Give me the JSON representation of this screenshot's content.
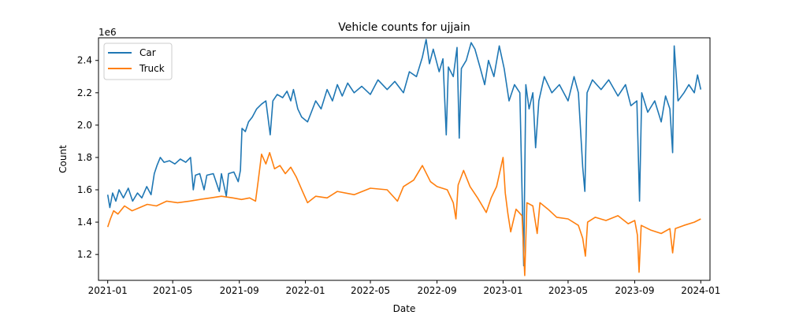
{
  "chart_data": {
    "type": "line",
    "title": "Vehicle counts for ujjain",
    "xlabel": "Date",
    "ylabel": "Count",
    "y_offset_label": "1e6",
    "ylim": [
      1.04,
      2.54
    ],
    "y_ticks": [
      1.2,
      1.4,
      1.6,
      1.8,
      2.0,
      2.2,
      2.4
    ],
    "y_tick_labels": [
      "1.2",
      "1.4",
      "1.6",
      "1.8",
      "2.0",
      "2.2",
      "2.4"
    ],
    "x_range": [
      "2020-12-15",
      "2024-01-18"
    ],
    "x_ticks": [
      "2021-01-01",
      "2021-05-01",
      "2021-09-01",
      "2022-01-01",
      "2022-05-01",
      "2022-09-01",
      "2023-01-01",
      "2023-05-01",
      "2023-09-01",
      "2024-01-01"
    ],
    "x_tick_labels": [
      "2021-01",
      "2021-05",
      "2021-09",
      "2022-01",
      "2022-05",
      "2022-09",
      "2023-01",
      "2023-05",
      "2023-09",
      "2024-01"
    ],
    "legend": {
      "placement": "upper-left",
      "entries": [
        "Car",
        "Truck"
      ]
    },
    "grid": false,
    "series": [
      {
        "name": "Car",
        "color": "#1f77b4",
        "points": [
          [
            "2021-01-01",
            1.57
          ],
          [
            "2021-01-05",
            1.49
          ],
          [
            "2021-01-10",
            1.58
          ],
          [
            "2021-01-16",
            1.53
          ],
          [
            "2021-01-22",
            1.6
          ],
          [
            "2021-01-30",
            1.55
          ],
          [
            "2021-02-08",
            1.61
          ],
          [
            "2021-02-16",
            1.53
          ],
          [
            "2021-02-25",
            1.58
          ],
          [
            "2021-03-05",
            1.55
          ],
          [
            "2021-03-14",
            1.62
          ],
          [
            "2021-03-22",
            1.57
          ],
          [
            "2021-03-28",
            1.7
          ],
          [
            "2021-04-02",
            1.75
          ],
          [
            "2021-04-08",
            1.8
          ],
          [
            "2021-04-15",
            1.77
          ],
          [
            "2021-04-25",
            1.78
          ],
          [
            "2021-05-05",
            1.76
          ],
          [
            "2021-05-15",
            1.79
          ],
          [
            "2021-05-25",
            1.77
          ],
          [
            "2021-06-03",
            1.8
          ],
          [
            "2021-06-08",
            1.6
          ],
          [
            "2021-06-12",
            1.69
          ],
          [
            "2021-06-20",
            1.7
          ],
          [
            "2021-06-28",
            1.6
          ],
          [
            "2021-07-03",
            1.69
          ],
          [
            "2021-07-15",
            1.7
          ],
          [
            "2021-07-26",
            1.59
          ],
          [
            "2021-07-30",
            1.7
          ],
          [
            "2021-08-08",
            1.56
          ],
          [
            "2021-08-12",
            1.7
          ],
          [
            "2021-08-22",
            1.71
          ],
          [
            "2021-08-30",
            1.65
          ],
          [
            "2021-09-03",
            1.72
          ],
          [
            "2021-09-06",
            1.98
          ],
          [
            "2021-09-12",
            1.96
          ],
          [
            "2021-09-18",
            2.02
          ],
          [
            "2021-09-25",
            2.05
          ],
          [
            "2021-10-03",
            2.1
          ],
          [
            "2021-10-12",
            2.13
          ],
          [
            "2021-10-20",
            2.15
          ],
          [
            "2021-10-28",
            1.94
          ],
          [
            "2021-11-02",
            2.15
          ],
          [
            "2021-11-10",
            2.19
          ],
          [
            "2021-11-20",
            2.17
          ],
          [
            "2021-11-28",
            2.21
          ],
          [
            "2021-12-05",
            2.15
          ],
          [
            "2021-12-10",
            2.22
          ],
          [
            "2021-12-18",
            2.1
          ],
          [
            "2021-12-25",
            2.05
          ],
          [
            "2022-01-05",
            2.02
          ],
          [
            "2022-01-12",
            2.08
          ],
          [
            "2022-01-20",
            2.15
          ],
          [
            "2022-01-30",
            2.1
          ],
          [
            "2022-02-10",
            2.22
          ],
          [
            "2022-02-20",
            2.15
          ],
          [
            "2022-03-01",
            2.25
          ],
          [
            "2022-03-10",
            2.18
          ],
          [
            "2022-03-20",
            2.26
          ],
          [
            "2022-04-01",
            2.2
          ],
          [
            "2022-04-15",
            2.24
          ],
          [
            "2022-05-01",
            2.19
          ],
          [
            "2022-05-15",
            2.28
          ],
          [
            "2022-06-01",
            2.22
          ],
          [
            "2022-06-15",
            2.27
          ],
          [
            "2022-07-01",
            2.2
          ],
          [
            "2022-07-12",
            2.33
          ],
          [
            "2022-07-25",
            2.3
          ],
          [
            "2022-08-05",
            2.42
          ],
          [
            "2022-08-12",
            2.53
          ],
          [
            "2022-08-18",
            2.38
          ],
          [
            "2022-08-25",
            2.47
          ],
          [
            "2022-09-05",
            2.33
          ],
          [
            "2022-09-12",
            2.41
          ],
          [
            "2022-09-18",
            1.94
          ],
          [
            "2022-09-22",
            2.36
          ],
          [
            "2022-10-01",
            2.3
          ],
          [
            "2022-10-08",
            2.48
          ],
          [
            "2022-10-12",
            1.92
          ],
          [
            "2022-10-16",
            2.35
          ],
          [
            "2022-10-25",
            2.4
          ],
          [
            "2022-11-03",
            2.51
          ],
          [
            "2022-11-10",
            2.47
          ],
          [
            "2022-11-20",
            2.35
          ],
          [
            "2022-11-28",
            2.25
          ],
          [
            "2022-12-05",
            2.4
          ],
          [
            "2022-12-15",
            2.3
          ],
          [
            "2022-12-25",
            2.49
          ],
          [
            "2023-01-03",
            2.35
          ],
          [
            "2023-01-12",
            2.15
          ],
          [
            "2023-01-22",
            2.25
          ],
          [
            "2023-02-01",
            2.2
          ],
          [
            "2023-02-08",
            1.13
          ],
          [
            "2023-02-12",
            2.25
          ],
          [
            "2023-02-18",
            2.1
          ],
          [
            "2023-02-25",
            2.2
          ],
          [
            "2023-03-02",
            1.86
          ],
          [
            "2023-03-08",
            2.15
          ],
          [
            "2023-03-18",
            2.3
          ],
          [
            "2023-04-01",
            2.2
          ],
          [
            "2023-04-15",
            2.25
          ],
          [
            "2023-05-01",
            2.15
          ],
          [
            "2023-05-12",
            2.3
          ],
          [
            "2023-05-20",
            2.2
          ],
          [
            "2023-05-28",
            1.74
          ],
          [
            "2023-06-01",
            1.59
          ],
          [
            "2023-06-05",
            2.2
          ],
          [
            "2023-06-15",
            2.28
          ],
          [
            "2023-07-01",
            2.22
          ],
          [
            "2023-07-15",
            2.28
          ],
          [
            "2023-08-01",
            2.18
          ],
          [
            "2023-08-15",
            2.25
          ],
          [
            "2023-08-25",
            2.12
          ],
          [
            "2023-09-05",
            2.15
          ],
          [
            "2023-09-10",
            1.53
          ],
          [
            "2023-09-14",
            2.2
          ],
          [
            "2023-09-25",
            2.08
          ],
          [
            "2023-10-08",
            2.15
          ],
          [
            "2023-10-20",
            2.02
          ],
          [
            "2023-10-28",
            2.18
          ],
          [
            "2023-11-05",
            2.1
          ],
          [
            "2023-11-10",
            1.83
          ],
          [
            "2023-11-13",
            2.49
          ],
          [
            "2023-11-20",
            2.15
          ],
          [
            "2023-12-01",
            2.2
          ],
          [
            "2023-12-10",
            2.25
          ],
          [
            "2023-12-20",
            2.2
          ],
          [
            "2023-12-26",
            2.31
          ],
          [
            "2024-01-01",
            2.22
          ]
        ]
      },
      {
        "name": "Truck",
        "color": "#ff7f0e",
        "points": [
          [
            "2021-01-01",
            1.37
          ],
          [
            "2021-01-06",
            1.42
          ],
          [
            "2021-01-12",
            1.47
          ],
          [
            "2021-01-20",
            1.45
          ],
          [
            "2021-02-01",
            1.5
          ],
          [
            "2021-02-15",
            1.47
          ],
          [
            "2021-03-01",
            1.49
          ],
          [
            "2021-03-15",
            1.51
          ],
          [
            "2021-04-01",
            1.5
          ],
          [
            "2021-04-20",
            1.53
          ],
          [
            "2021-05-10",
            1.52
          ],
          [
            "2021-06-01",
            1.53
          ],
          [
            "2021-06-20",
            1.54
          ],
          [
            "2021-07-10",
            1.55
          ],
          [
            "2021-07-30",
            1.56
          ],
          [
            "2021-08-20",
            1.55
          ],
          [
            "2021-09-05",
            1.54
          ],
          [
            "2021-09-20",
            1.55
          ],
          [
            "2021-10-01",
            1.53
          ],
          [
            "2021-10-06",
            1.66
          ],
          [
            "2021-10-12",
            1.82
          ],
          [
            "2021-10-20",
            1.76
          ],
          [
            "2021-10-27",
            1.83
          ],
          [
            "2021-11-05",
            1.73
          ],
          [
            "2021-11-15",
            1.75
          ],
          [
            "2021-11-25",
            1.7
          ],
          [
            "2021-12-05",
            1.74
          ],
          [
            "2021-12-15",
            1.68
          ],
          [
            "2021-12-28",
            1.58
          ],
          [
            "2022-01-05",
            1.52
          ],
          [
            "2022-01-20",
            1.56
          ],
          [
            "2022-02-10",
            1.55
          ],
          [
            "2022-03-01",
            1.59
          ],
          [
            "2022-04-01",
            1.57
          ],
          [
            "2022-05-01",
            1.61
          ],
          [
            "2022-06-01",
            1.6
          ],
          [
            "2022-06-20",
            1.53
          ],
          [
            "2022-07-01",
            1.62
          ],
          [
            "2022-07-20",
            1.66
          ],
          [
            "2022-08-05",
            1.75
          ],
          [
            "2022-08-20",
            1.65
          ],
          [
            "2022-09-01",
            1.62
          ],
          [
            "2022-09-20",
            1.6
          ],
          [
            "2022-10-01",
            1.52
          ],
          [
            "2022-10-06",
            1.42
          ],
          [
            "2022-10-10",
            1.63
          ],
          [
            "2022-10-20",
            1.72
          ],
          [
            "2022-11-01",
            1.62
          ],
          [
            "2022-11-15",
            1.55
          ],
          [
            "2022-12-01",
            1.46
          ],
          [
            "2022-12-10",
            1.55
          ],
          [
            "2022-12-20",
            1.62
          ],
          [
            "2023-01-01",
            1.8
          ],
          [
            "2023-01-05",
            1.58
          ],
          [
            "2023-01-10",
            1.45
          ],
          [
            "2023-01-15",
            1.34
          ],
          [
            "2023-01-25",
            1.48
          ],
          [
            "2023-02-05",
            1.44
          ],
          [
            "2023-02-10",
            1.07
          ],
          [
            "2023-02-14",
            1.52
          ],
          [
            "2023-02-25",
            1.5
          ],
          [
            "2023-03-05",
            1.33
          ],
          [
            "2023-03-10",
            1.52
          ],
          [
            "2023-03-25",
            1.48
          ],
          [
            "2023-04-10",
            1.43
          ],
          [
            "2023-05-01",
            1.42
          ],
          [
            "2023-05-20",
            1.38
          ],
          [
            "2023-05-28",
            1.3
          ],
          [
            "2023-06-02",
            1.19
          ],
          [
            "2023-06-06",
            1.4
          ],
          [
            "2023-06-20",
            1.43
          ],
          [
            "2023-07-10",
            1.41
          ],
          [
            "2023-08-01",
            1.44
          ],
          [
            "2023-08-20",
            1.39
          ],
          [
            "2023-09-01",
            1.41
          ],
          [
            "2023-09-06",
            1.32
          ],
          [
            "2023-09-09",
            1.09
          ],
          [
            "2023-09-13",
            1.38
          ],
          [
            "2023-10-01",
            1.35
          ],
          [
            "2023-10-20",
            1.33
          ],
          [
            "2023-11-05",
            1.36
          ],
          [
            "2023-11-10",
            1.21
          ],
          [
            "2023-11-15",
            1.36
          ],
          [
            "2023-12-01",
            1.38
          ],
          [
            "2023-12-20",
            1.4
          ],
          [
            "2024-01-01",
            1.42
          ]
        ]
      }
    ]
  }
}
